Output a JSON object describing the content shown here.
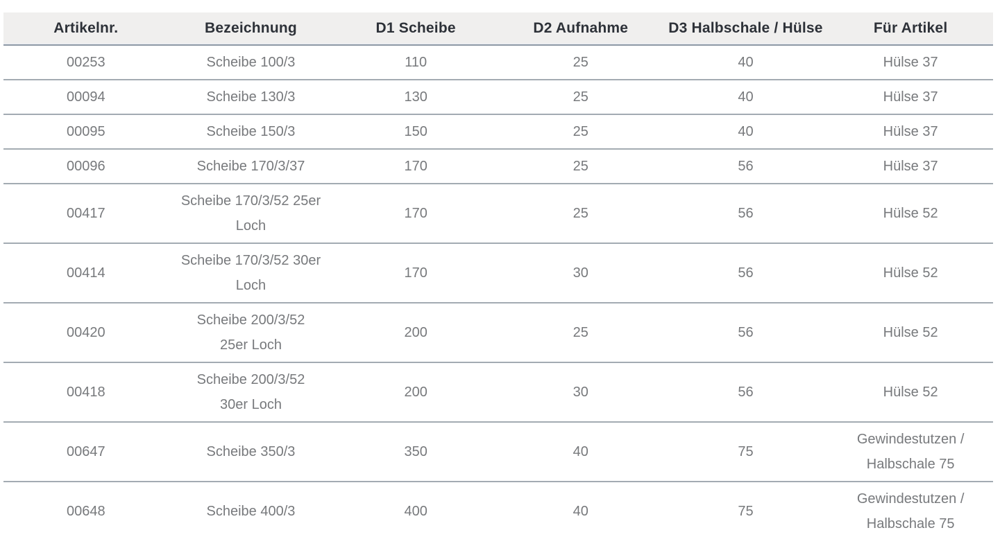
{
  "table": {
    "columns": [
      {
        "key": "artikelnr",
        "label": "Artikelnr."
      },
      {
        "key": "bezeichnung",
        "label": "Bezeichnung"
      },
      {
        "key": "d1_scheibe",
        "label": "D1 Scheibe"
      },
      {
        "key": "d2_aufnahme",
        "label": "D2 Aufnahme"
      },
      {
        "key": "d3_halbschale_huelse",
        "label": "D3 Halbschale / Hülse"
      },
      {
        "key": "fuer_artikel",
        "label": "Für Artikel"
      }
    ],
    "rows": [
      [
        "00253",
        "Scheibe 100/3",
        "110",
        "25",
        "40",
        "Hülse 37"
      ],
      [
        "00094",
        "Scheibe 130/3",
        "130",
        "25",
        "40",
        "Hülse 37"
      ],
      [
        "00095",
        "Scheibe 150/3",
        "150",
        "25",
        "40",
        "Hülse 37"
      ],
      [
        "00096",
        "Scheibe 170/3/37",
        "170",
        "25",
        "56",
        "Hülse 37"
      ],
      [
        "00417",
        "Scheibe 170/3/52 25er\nLoch",
        "170",
        "25",
        "56",
        "Hülse 52"
      ],
      [
        "00414",
        "Scheibe 170/3/52 30er\nLoch",
        "170",
        "30",
        "56",
        "Hülse 52"
      ],
      [
        "00420",
        "Scheibe 200/3/52\n25er Loch",
        "200",
        "25",
        "56",
        "Hülse 52"
      ],
      [
        "00418",
        "Scheibe 200/3/52\n30er Loch",
        "200",
        "30",
        "56",
        "Hülse 52"
      ],
      [
        "00647",
        "Scheibe 350/3",
        "350",
        "40",
        "75",
        "Gewindestutzen /\nHalbschale 75"
      ],
      [
        "00648",
        "Scheibe 400/3",
        "400",
        "40",
        "75",
        "Gewindestutzen /\nHalbschale 75"
      ]
    ]
  },
  "colors": {
    "page_bg": "#ffffff",
    "header_bg": "#f0efee",
    "header_text": "#2d3138",
    "header_border": "#8e99a5",
    "body_text": "#77797c",
    "row_border": "#a3abb2"
  }
}
